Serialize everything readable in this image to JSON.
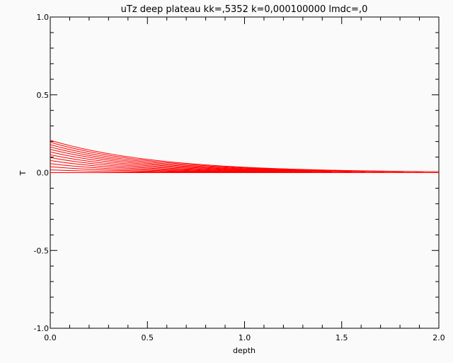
{
  "chart_data": {
    "type": "line",
    "title": "uTz deep plateau kk=,5352 k=0,000100000 lmdc=,0",
    "xlabel": "depth",
    "ylabel": "T",
    "xlim": [
      0.0,
      2.0
    ],
    "ylim": [
      -1.0,
      1.0
    ],
    "x_ticks": [
      0.0,
      0.5,
      1.0,
      1.5,
      2.0
    ],
    "x_tick_labels": [
      "0.0",
      "0.5",
      "1.0",
      "1.5",
      "2.0"
    ],
    "y_ticks": [
      -1.0,
      -0.5,
      0.0,
      0.5,
      1.0
    ],
    "y_tick_labels": [
      "-1.0",
      "-0.5",
      "0.0",
      "0.5",
      "1.0"
    ],
    "grid": false,
    "line_color": "#ff0000",
    "surface_values": [
      0.208,
      0.195,
      0.18,
      0.165,
      0.15,
      0.133,
      0.115,
      0.097,
      0.078,
      0.058,
      0.038,
      0.018,
      0.0
    ],
    "decay_lengths": [
      0.56,
      0.54,
      0.52,
      0.5,
      0.48,
      0.46,
      0.44,
      0.42,
      0.4,
      0.38,
      0.36,
      0.34,
      0.32
    ],
    "curve_end_depth": [
      2.0,
      1.92,
      1.82,
      1.72,
      1.62,
      1.55,
      1.45,
      1.35,
      1.25,
      1.15,
      1.05,
      0.95,
      0.85
    ]
  }
}
